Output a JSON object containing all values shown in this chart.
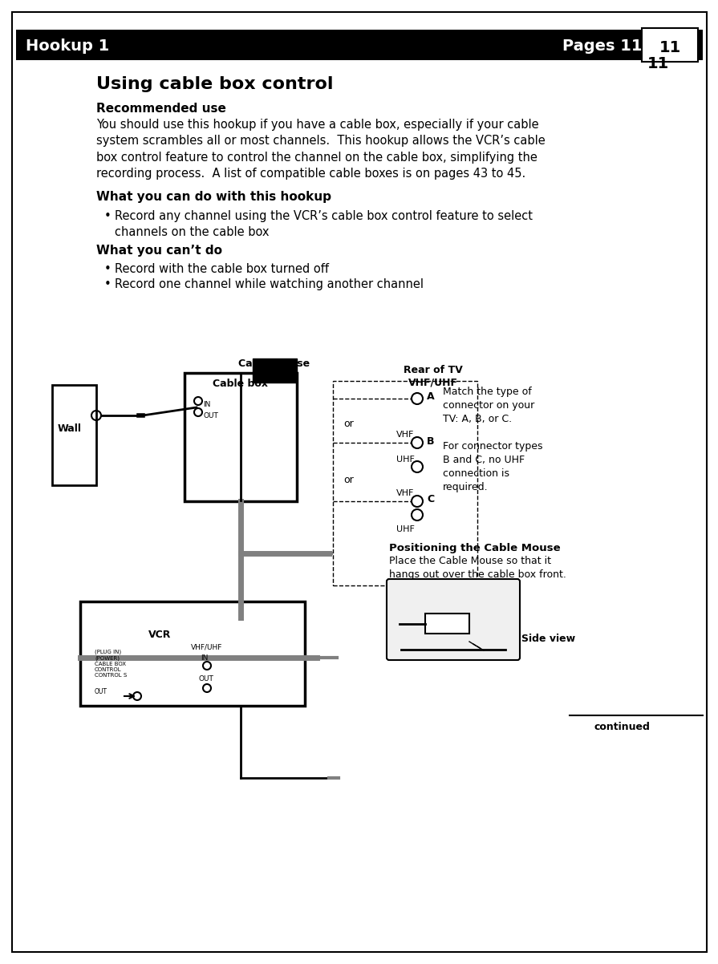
{
  "header_bg": "#000000",
  "header_text_color": "#ffffff",
  "header_left": "Hookup 1",
  "header_right": "Pages 11 to 14",
  "header_fontsize": 14,
  "title": "Using cable box control",
  "title_fontsize": 16,
  "section1_header": "Recommended use",
  "section1_body": "You should use this hookup if you have a cable box, especially if your cable\nsystem scrambles all or most channels.  This hookup allows the VCR’s cable\nbox control feature to control the channel on the cable box, simplifying the\nrecording process.  A list of compatible cable boxes is on pages 43 to 45.",
  "section2_header": "What you can do with this hookup",
  "section2_bullet": "Record any channel using the VCR’s cable box control feature to select\nchannels on the cable box",
  "section3_header": "What you can’t do",
  "section3_bullet1": "Record with the cable box turned off",
  "section3_bullet2": "Record one channel while watching another channel",
  "body_fontsize": 10.5,
  "bold_fontsize": 11,
  "bg_color": "#ffffff",
  "text_color": "#000000",
  "diagram_label_wall": "Wall",
  "diagram_label_cablebox": "Cable box",
  "diagram_label_cablemouse": "Cable Mouse",
  "diagram_label_vcr": "VCR",
  "diagram_label_rear_tv": "Rear of TV",
  "diagram_label_vhfuhf": "VHF/UHF",
  "diagram_label_vhf": "VHF",
  "diagram_label_uhf": "UHF",
  "diagram_label_A": "A",
  "diagram_label_B": "B",
  "diagram_label_C": "C",
  "diagram_label_or1": "or",
  "diagram_label_or2": "or",
  "note_A": "Match the type of\nconnector on your\nTV: A, B, or C.",
  "note_B": "For connector types\nB and C, no UHF\nconnection is\nrequired.",
  "positioning_header": "Positioning the Cable Mouse",
  "positioning_body": "Place the Cable Mouse so that it\nhangs out over the cable box front.",
  "side_view_label": "Side view",
  "continued_label": "continued",
  "page_number": "11",
  "gray_color": "#808080",
  "light_gray": "#aaaaaa",
  "dark_gray": "#555555"
}
